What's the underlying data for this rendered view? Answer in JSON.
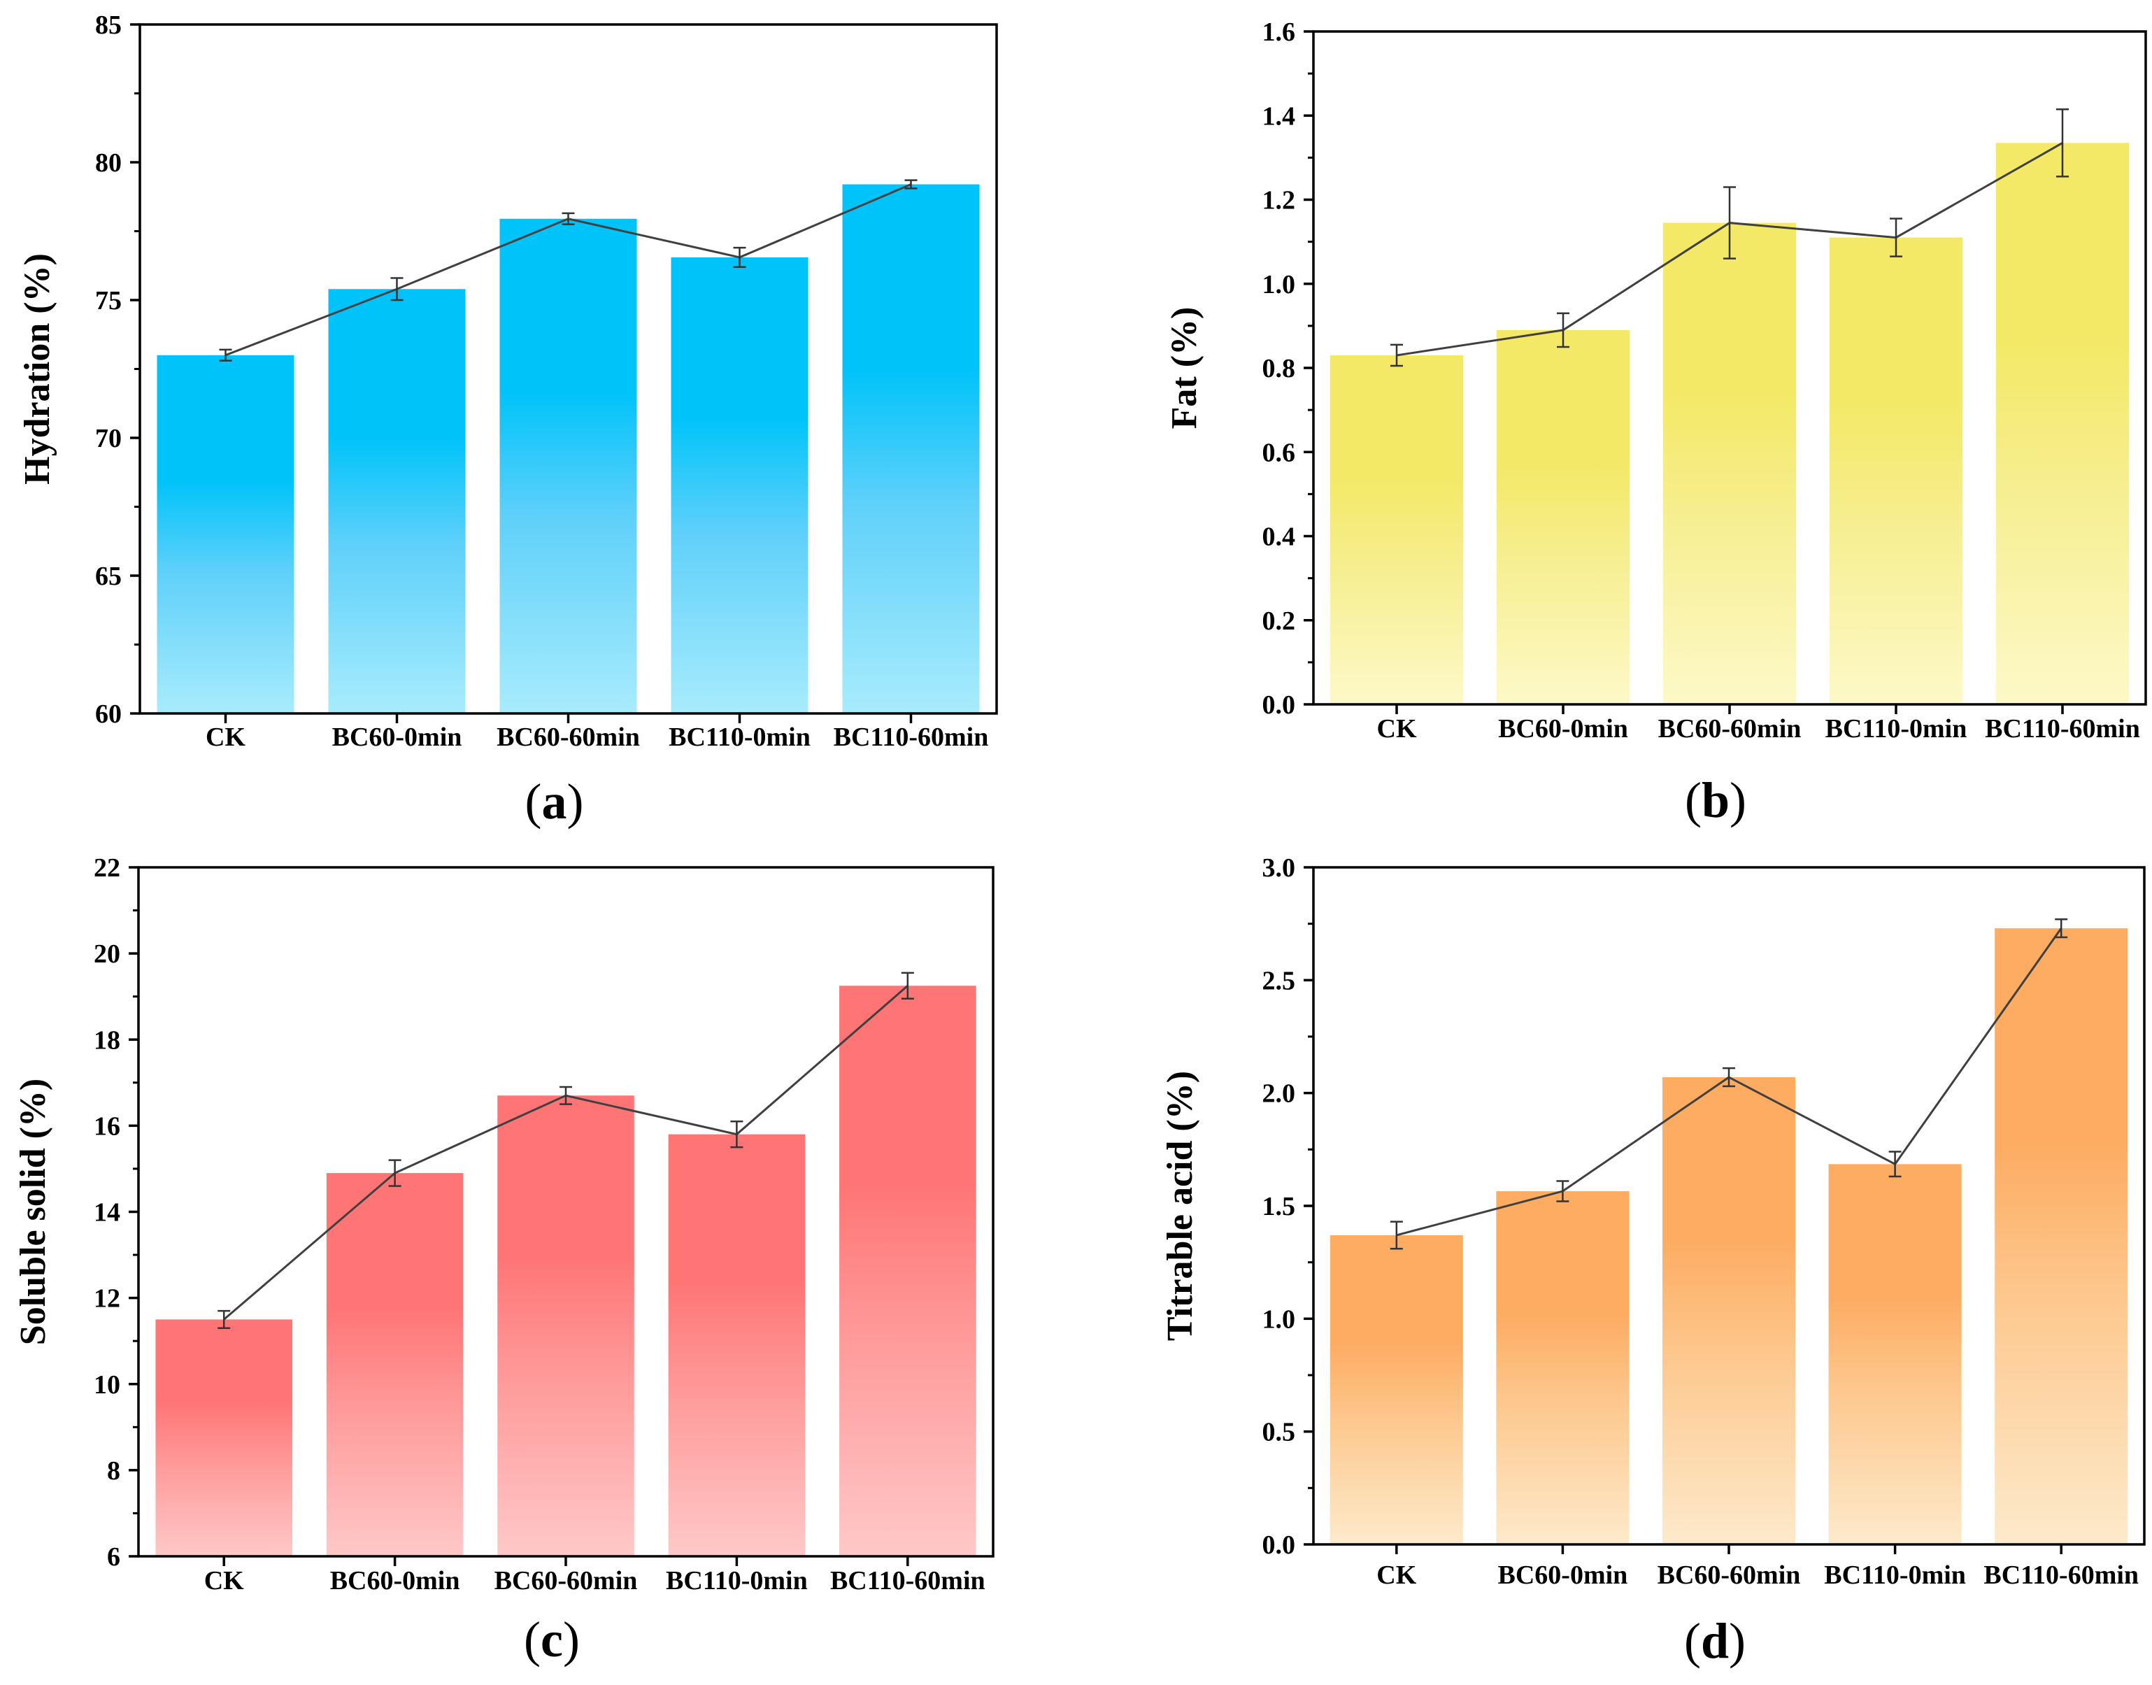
{
  "chart_data": [
    {
      "type": "bar",
      "panel_label": "a",
      "categories": [
        "CK",
        "BC60-0min",
        "BC60-60min",
        "BC110-0min",
        "BC110-60min"
      ],
      "values": [
        73.0,
        75.4,
        77.95,
        76.55,
        79.2
      ],
      "errors": [
        0.2,
        0.4,
        0.2,
        0.35,
        0.15
      ],
      "title": "",
      "xlabel": "",
      "ylabel": "Hydration (%)",
      "ylim": [
        60,
        85
      ],
      "yticks": [
        60,
        65,
        70,
        75,
        80,
        85
      ],
      "ytick_labels": [
        "60",
        "65",
        "70",
        "75",
        "80",
        "85"
      ],
      "grid": false,
      "line_overlay": true,
      "colors": {
        "top": "#00c3fa",
        "mid": "#5ed0fa",
        "bottom": "#a8ecfc",
        "line": "#404040"
      }
    },
    {
      "type": "bar",
      "panel_label": "b",
      "categories": [
        "CK",
        "BC60-0min",
        "BC60-60min",
        "BC110-0min",
        "BC110-60min"
      ],
      "values": [
        0.83,
        0.89,
        1.145,
        1.11,
        1.335
      ],
      "errors": [
        0.025,
        0.04,
        0.085,
        0.045,
        0.08
      ],
      "title": "",
      "xlabel": "",
      "ylabel": "Fat (%)",
      "ylim": [
        0,
        1.6
      ],
      "yticks": [
        0,
        0.2,
        0.4,
        0.6,
        0.8,
        1.0,
        1.2,
        1.4,
        1.6
      ],
      "ytick_labels": [
        "0.0",
        "0.2",
        "0.4",
        "0.6",
        "0.8",
        "1.0",
        "1.2",
        "1.4",
        "1.6"
      ],
      "grid": false,
      "line_overlay": true,
      "colors": {
        "top": "#f3e966",
        "mid": "#f6ee8e",
        "bottom": "#fdf9c8",
        "line": "#404040"
      }
    },
    {
      "type": "bar",
      "panel_label": "c",
      "categories": [
        "CK",
        "BC60-0min",
        "BC60-60min",
        "BC110-0min",
        "BC110-60min"
      ],
      "values": [
        11.5,
        14.9,
        16.7,
        15.8,
        19.25
      ],
      "errors": [
        0.2,
        0.3,
        0.2,
        0.3,
        0.3
      ],
      "title": "",
      "xlabel": "",
      "ylabel": "Soluble solid (%)",
      "ylim": [
        6,
        22
      ],
      "yticks": [
        6,
        8,
        10,
        12,
        14,
        16,
        18,
        20,
        22
      ],
      "ytick_labels": [
        "6",
        "8",
        "10",
        "12",
        "14",
        "16",
        "18",
        "20",
        "22"
      ],
      "grid": false,
      "line_overlay": true,
      "colors": {
        "top": "#ff7575",
        "mid": "#ff9898",
        "bottom": "#ffc8c8",
        "line": "#404040"
      }
    },
    {
      "type": "bar",
      "panel_label": "d",
      "categories": [
        "CK",
        "BC60-0min",
        "BC60-60min",
        "BC110-0min",
        "BC110-60min"
      ],
      "values": [
        1.37,
        1.565,
        2.07,
        1.685,
        2.73
      ],
      "errors": [
        0.06,
        0.045,
        0.04,
        0.055,
        0.04
      ],
      "title": "",
      "xlabel": "",
      "ylabel": "Titrable acid (%)",
      "ylim": [
        0,
        3.0
      ],
      "yticks": [
        0,
        0.5,
        1.0,
        1.5,
        2.0,
        2.5,
        3.0
      ],
      "ytick_labels": [
        "0.0",
        "0.5",
        "1.0",
        "1.5",
        "2.0",
        "2.5",
        "3.0"
      ],
      "grid": false,
      "line_overlay": true,
      "colors": {
        "top": "#fdac62",
        "mid": "#fdc88e",
        "bottom": "#fdeacb",
        "line": "#404040"
      }
    }
  ]
}
